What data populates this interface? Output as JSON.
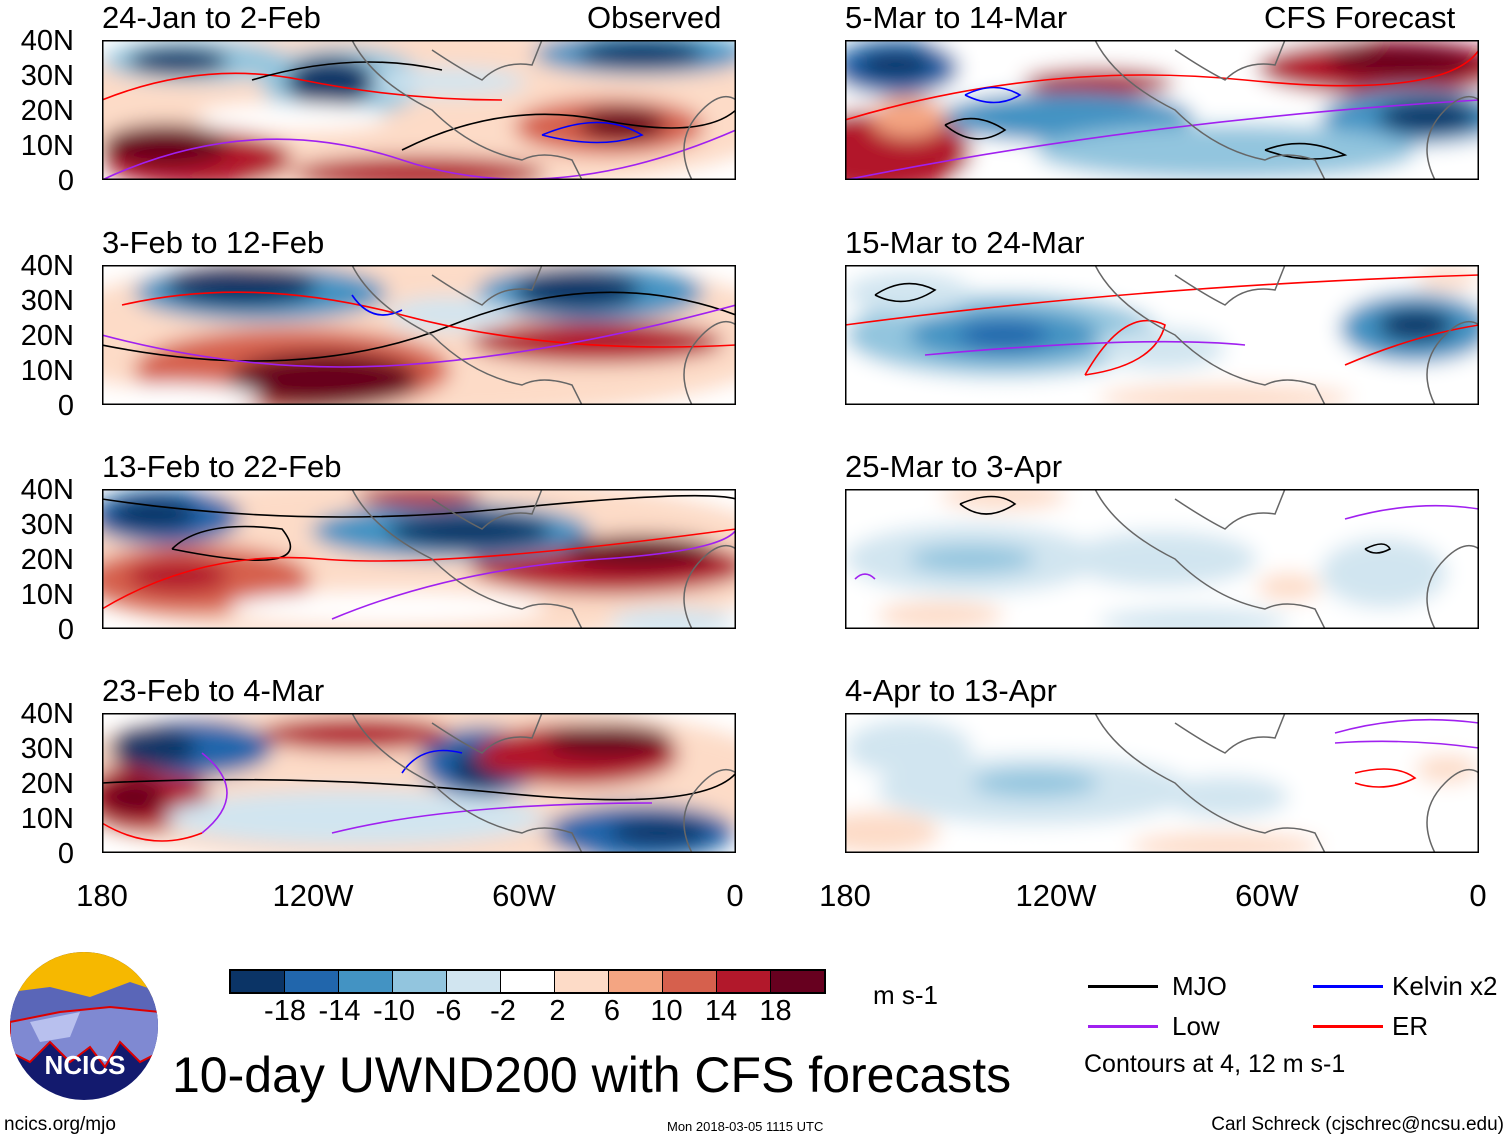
{
  "header": {
    "left_label": "Observed",
    "right_label": "CFS Forecast"
  },
  "panels": [
    {
      "title": "24-Jan to 2-Feb",
      "column": "observed"
    },
    {
      "title": "3-Feb to 12-Feb",
      "column": "observed"
    },
    {
      "title": "13-Feb to 22-Feb",
      "column": "observed"
    },
    {
      "title": "23-Feb to 4-Mar",
      "column": "observed"
    },
    {
      "title": "5-Mar to 14-Mar",
      "column": "forecast"
    },
    {
      "title": "15-Mar to 24-Mar",
      "column": "forecast"
    },
    {
      "title": "25-Mar to 3-Apr",
      "column": "forecast"
    },
    {
      "title": "4-Apr to 13-Apr",
      "column": "forecast"
    }
  ],
  "y_labels": [
    "40N",
    "30N",
    "20N",
    "10N",
    "0"
  ],
  "x_labels": [
    "180",
    "120W",
    "60W",
    "0"
  ],
  "colorbar": {
    "colors": [
      "#0b3466",
      "#2166ac",
      "#4393c3",
      "#92c5de",
      "#d1e5f0",
      "#ffffff",
      "#fddbc7",
      "#f4a582",
      "#d6604d",
      "#b2182b",
      "#67001f"
    ],
    "labels": [
      "-18",
      "-14",
      "-10",
      "-6",
      "-2",
      "2",
      "6",
      "10",
      "14",
      "18"
    ],
    "units": "m s-1"
  },
  "legend": {
    "items": [
      {
        "label": "MJO",
        "color": "#000000"
      },
      {
        "label": "Kelvin x2",
        "color": "#0000ff"
      },
      {
        "label": "Low",
        "color": "#a020f0"
      },
      {
        "label": "ER",
        "color": "#ff0000"
      }
    ],
    "note": "Contours at 4, 12 m s-1"
  },
  "logo": {
    "text": "NCICS"
  },
  "title": "10-day UWND200 with CFS forecasts",
  "footer": {
    "left": "ncics.org/mjo",
    "center": "Mon 2018-03-05 1115 UTC",
    "right": "Carl Schreck (cjschrec@ncsu.edu)"
  }
}
